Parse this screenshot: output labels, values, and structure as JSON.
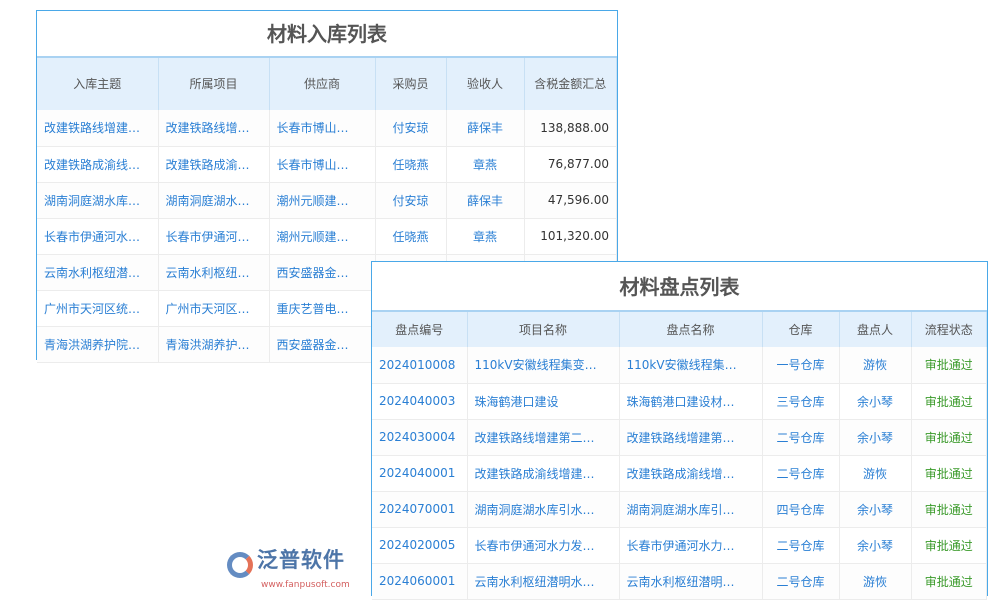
{
  "inbound": {
    "title": "材料入库列表",
    "columns": [
      "入库主题",
      "所属项目",
      "供应商",
      "采购员",
      "验收人",
      "含税金额汇总"
    ],
    "rows": [
      [
        "改建铁路线增建…",
        "改建铁路线增…",
        "长春市博山…",
        "付安琼",
        "薛保丰",
        "138,888.00"
      ],
      [
        "改建铁路成渝线…",
        "改建铁路成渝…",
        "长春市博山…",
        "任晓燕",
        "章燕",
        "76,877.00"
      ],
      [
        "湖南洞庭湖水库…",
        "湖南洞庭湖水…",
        "潮州元顺建…",
        "付安琼",
        "薛保丰",
        "47,596.00"
      ],
      [
        "长春市伊通河水…",
        "长春市伊通河…",
        "潮州元顺建…",
        "任晓燕",
        "章燕",
        "101,320.00"
      ],
      [
        "云南水利枢纽潜…",
        "云南水利枢纽…",
        "西安盛器金…",
        "",
        "",
        ""
      ],
      [
        "广州市天河区统…",
        "广州市天河区…",
        "重庆艺普电…",
        "",
        "",
        ""
      ],
      [
        "青海洪湖养护院…",
        "青海洪湖养护…",
        "西安盛器金…",
        "",
        "",
        ""
      ]
    ]
  },
  "stocktake": {
    "title": "材料盘点列表",
    "columns": [
      "盘点编号",
      "项目名称",
      "盘点名称",
      "仓库",
      "盘点人",
      "流程状态"
    ],
    "rows": [
      [
        "2024010008",
        "110kV安徽线程集变…",
        "110kV安徽线程集…",
        "一号仓库",
        "游恢",
        "审批通过"
      ],
      [
        "2024040003",
        "珠海鹤港口建设",
        "珠海鹤港口建设材…",
        "三号仓库",
        "余小琴",
        "审批通过"
      ],
      [
        "2024030004",
        "改建铁路线增建第二…",
        "改建铁路线增建第…",
        "二号仓库",
        "余小琴",
        "审批通过"
      ],
      [
        "2024040001",
        "改建铁路成渝线增建…",
        "改建铁路成渝线增…",
        "二号仓库",
        "游恢",
        "审批通过"
      ],
      [
        "2024070001",
        "湖南洞庭湖水库引水…",
        "湖南洞庭湖水库引…",
        "四号仓库",
        "余小琴",
        "审批通过"
      ],
      [
        "2024020005",
        "长春市伊通河水力发…",
        "长春市伊通河水力…",
        "二号仓库",
        "余小琴",
        "审批通过"
      ],
      [
        "2024060001",
        "云南水利枢纽潜明水…",
        "云南水利枢纽潜明…",
        "二号仓库",
        "游恢",
        "审批通过"
      ]
    ]
  },
  "watermark": {
    "brand": "泛普软件",
    "url": "www.fanpusoft.com"
  },
  "colors": {
    "link": "#2a7fd4",
    "header_bg": "#e3f0fc",
    "border": "#4aa8e8",
    "status_approved": "#3a9a2a"
  }
}
